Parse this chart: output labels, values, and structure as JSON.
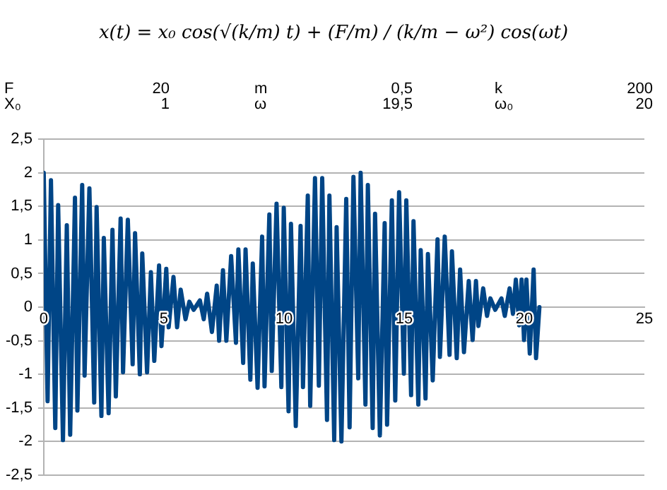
{
  "chart_data": {
    "type": "line",
    "title": "x(t) = x₀ cos(√(k/m) t) + (F/m) / (k/m − ω²) cos(ωt)",
    "annotations": [
      "F",
      "20",
      "m",
      "0,5",
      "k",
      "200",
      "X₀",
      "1",
      "ω",
      "19,5",
      "ω₀",
      "20"
    ],
    "series": [
      {
        "color": "#004586",
        "x": [
          0,
          0.16,
          0.3,
          0.48,
          0.6,
          0.8,
          0.96,
          1.1,
          1.3,
          1.4,
          1.6,
          1.7,
          1.9,
          2.1,
          2.2,
          2.4,
          2.5,
          2.7,
          2.86,
          3.0,
          3.2,
          3.3,
          3.5,
          3.7,
          3.8,
          4.0,
          4.1,
          4.3,
          4.46,
          4.6,
          4.8,
          4.9,
          5.1,
          5.2,
          5.4,
          5.55,
          5.7,
          5.9,
          6.06,
          6.24,
          6.5,
          6.66,
          6.8,
          7.0,
          7.2,
          7.3,
          7.46,
          7.6,
          7.8,
          8.0,
          8.1,
          8.3,
          8.4,
          8.6,
          8.7,
          8.9,
          9.09,
          9.19,
          9.39,
          9.49,
          9.69,
          9.89,
          9.99,
          10.19,
          10.29,
          10.49,
          10.69,
          10.79,
          10.99,
          11.09,
          11.29,
          11.45,
          11.59,
          11.79,
          11.89,
          12.09,
          12.19,
          12.39,
          12.59,
          12.73,
          12.89,
          13.09,
          13.19,
          13.39,
          13.49,
          13.69,
          13.79,
          13.99,
          14.19,
          14.29,
          14.49,
          14.63,
          14.79,
          14.99,
          15.09,
          15.29,
          15.39,
          15.59,
          15.69,
          15.89,
          15.99,
          16.19,
          16.39,
          16.49,
          16.69,
          16.89,
          16.99,
          17.19,
          17.33,
          17.49,
          17.69,
          17.85,
          17.99,
          18.09,
          18.29,
          18.45,
          18.59,
          18.79,
          19.05,
          19.19,
          19.39,
          19.53,
          19.65,
          19.79,
          19.89,
          19.99,
          20.09,
          20.23,
          20.39,
          20.49,
          20.63
        ],
        "values": [
          2,
          -1.4,
          1.89,
          -1.8,
          1.52,
          -1.98,
          1.22,
          -1.9,
          1.63,
          -1.54,
          1.82,
          -1.02,
          1.77,
          -1.42,
          1.49,
          -1.62,
          1.03,
          -1.58,
          1.15,
          -1.33,
          1.32,
          -0.97,
          1.3,
          -0.85,
          1.1,
          -1.0,
          0.8,
          -0.97,
          0.52,
          -0.8,
          0.62,
          -0.58,
          0.57,
          -0.3,
          0.45,
          -0.3,
          0.26,
          -0.18,
          0.08,
          -0.04,
          0.1,
          -0.18,
          0.2,
          -0.37,
          0.32,
          -0.5,
          0.55,
          -0.5,
          0.76,
          -0.53,
          0.86,
          -0.83,
          0.86,
          -1.08,
          0.65,
          -1.2,
          1.05,
          -1.18,
          1.38,
          -0.95,
          1.54,
          -1.19,
          1.48,
          -1.55,
          1.24,
          -1.77,
          1.21,
          -1.19,
          1.66,
          -1.47,
          1.92,
          -1.17,
          1.92,
          -1.68,
          1.66,
          -1.98,
          1.19,
          -2.0,
          1.61,
          -1.79,
          1.94,
          -1.06,
          2.0,
          -1.45,
          1.82,
          -1.8,
          1.39,
          -1.91,
          1.25,
          -1.75,
          1.59,
          -1.39,
          1.71,
          -0.99,
          1.59,
          -1.31,
          1.28,
          -1.45,
          0.85,
          -1.36,
          0.79,
          -1.09,
          1.01,
          -0.74,
          1.05,
          -0.71,
          0.83,
          -0.76,
          0.56,
          -0.67,
          0.39,
          -0.49,
          0.39,
          -0.28,
          0.28,
          -0.13,
          0.13,
          -0.04,
          0.13,
          -0.13,
          0.28,
          -0.1,
          0.41,
          -0.27,
          0.41,
          -0.49,
          0.41,
          -0.69,
          0.56,
          -0.76,
          0
        ]
      }
    ],
    "xlim": [
      0,
      25
    ],
    "xticks": [
      0,
      5,
      10,
      15,
      20,
      25
    ],
    "ylim": [
      -2.5,
      2.5
    ],
    "yticks": [
      {
        "value": -2.5,
        "label": "-2,5"
      },
      -2,
      {
        "value": -1.5,
        "label": "-1,5"
      },
      -1,
      {
        "value": -0.5,
        "label": "-0,5"
      },
      0,
      {
        "value": 0.5,
        "label": "0,5"
      },
      1,
      {
        "value": 1.5,
        "label": "1,5"
      },
      2,
      {
        "value": 2.5,
        "label": "2,5"
      }
    ],
    "grid": "y",
    "legend": false,
    "marker": "none",
    "line_style": "solid"
  }
}
